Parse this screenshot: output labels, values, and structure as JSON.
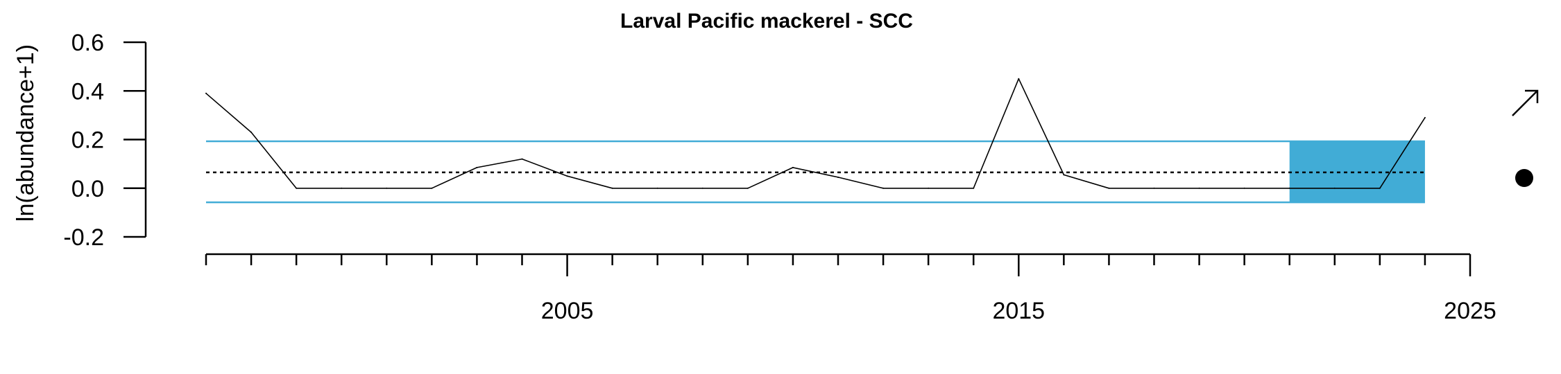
{
  "chart_data": {
    "type": "line",
    "title": "Larval Pacific mackerel - SCC",
    "xlabel": "",
    "ylabel": "ln(abundance+1)",
    "xlim": [
      1997,
      2025
    ],
    "ylim": [
      -0.2,
      0.6
    ],
    "x_major_ticks": [
      2005,
      2015,
      2025
    ],
    "x_minor_ticks": [
      1997,
      1998,
      1999,
      2000,
      2001,
      2002,
      2003,
      2004,
      2006,
      2007,
      2008,
      2009,
      2010,
      2011,
      2012,
      2013,
      2014,
      2016,
      2017,
      2018,
      2019,
      2020,
      2021,
      2022,
      2023,
      2024
    ],
    "y_ticks": [
      -0.2,
      0.0,
      0.2,
      0.4,
      0.6
    ],
    "x_tick_labels": [
      "2005",
      "2015",
      "2025"
    ],
    "y_tick_labels": [
      "-0.2",
      "0.0",
      "0.2",
      "0.4",
      "0.6"
    ],
    "grid": false,
    "series": [
      {
        "x": [
          1997,
          1998,
          1999,
          2000,
          2001,
          2002,
          2003,
          2004,
          2005,
          2006,
          2007,
          2008,
          2009,
          2010,
          2011,
          2012,
          2013,
          2014,
          2015,
          2016,
          2017,
          2018,
          2019,
          2020,
          2021,
          2022,
          2023,
          2024
        ],
        "values": [
          0.39,
          0.23,
          0.0,
          0.0,
          0.0,
          0.0,
          0.085,
          0.12,
          0.05,
          0.0,
          0.0,
          0.0,
          0.0,
          0.085,
          0.045,
          0.0,
          0.0,
          0.0,
          0.45,
          0.055,
          0.0,
          0.0,
          0.0,
          0.0,
          0.0,
          0.0,
          0.0,
          0.29
        ]
      }
    ],
    "reference_lines": {
      "mean": 0.065,
      "upper_sd": 0.193,
      "lower_sd": -0.058
    },
    "highlight_period": [
      2021,
      2024
    ],
    "trend_indicator": "increasing-arrow",
    "mean_indicator": "within-one-sd-dot",
    "colors": {
      "series": "#000000",
      "sd_lines": "#41acd6",
      "highlight": "#41acd6",
      "mean_line": "#000000"
    }
  }
}
